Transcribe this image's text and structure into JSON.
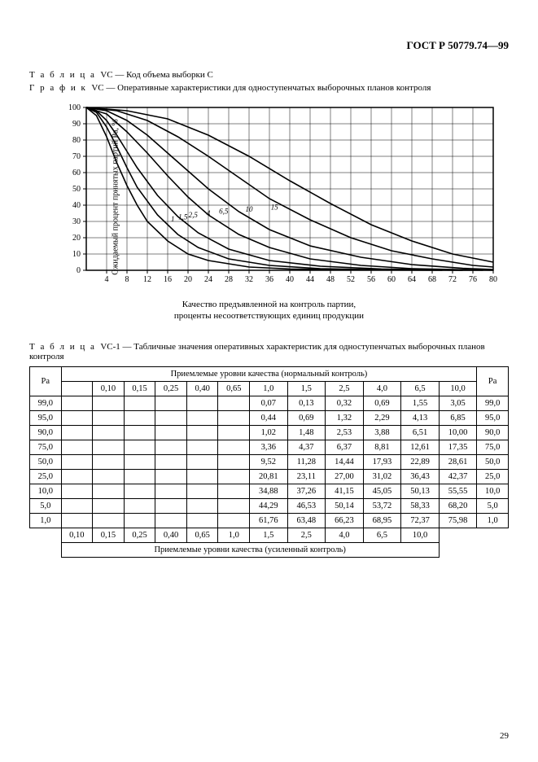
{
  "document_id": "ГОСТ Р 50779.74—99",
  "page_number": "29",
  "table_vc_caption_prefix": "Т а б л и ц а",
  "table_vc_caption_code": "VC —",
  "table_vc_caption_text": "Код объема выборки C",
  "graphic_vc_caption_prefix": "Г р а ф и к",
  "graphic_vc_caption_code": "VC —",
  "graphic_vc_caption_text": "Оперативные характеристики для одноступенчатых выборочных планов контроля",
  "chart_sub_line1": "Качество предъявленной на контроль партии,",
  "chart_sub_line2": "проценты несоответствующих единиц продукции",
  "chart": {
    "type": "line",
    "background_color": "#ffffff",
    "axis_color": "#000000",
    "grid_color": "#000000",
    "ylabel": "Ожидаемый процент принятых партий Pa, %",
    "ylim": [
      0,
      100
    ],
    "ytick_step": 10,
    "xlim": [
      0,
      80
    ],
    "xticks": [
      4,
      8,
      12,
      16,
      20,
      24,
      28,
      32,
      36,
      40,
      44,
      48,
      52,
      56,
      60,
      64,
      68,
      72,
      76,
      80
    ],
    "curve_labels": [
      "1",
      "1,5",
      "2,5",
      "4",
      "6,5",
      "10",
      "15"
    ],
    "curve_label_positions_x": [
      17,
      19,
      21,
      24,
      27,
      32,
      37
    ],
    "series": [
      {
        "label": "1",
        "color": "#000000",
        "points": [
          [
            0,
            100
          ],
          [
            2,
            95
          ],
          [
            4,
            82
          ],
          [
            6,
            66
          ],
          [
            8,
            52
          ],
          [
            10,
            40
          ],
          [
            12,
            30
          ],
          [
            16,
            18
          ],
          [
            20,
            10
          ],
          [
            24,
            6
          ],
          [
            32,
            2
          ],
          [
            40,
            0.8
          ],
          [
            52,
            0.2
          ],
          [
            70,
            0
          ]
        ]
      },
      {
        "label": "1,5",
        "color": "#000000",
        "points": [
          [
            0,
            100
          ],
          [
            2,
            97
          ],
          [
            4,
            88
          ],
          [
            6,
            76
          ],
          [
            8,
            63
          ],
          [
            10,
            51
          ],
          [
            14,
            34
          ],
          [
            18,
            22
          ],
          [
            22,
            14
          ],
          [
            28,
            7
          ],
          [
            36,
            3
          ],
          [
            46,
            1
          ],
          [
            60,
            0.2
          ],
          [
            74,
            0
          ]
        ]
      },
      {
        "label": "2,5",
        "color": "#000000",
        "points": [
          [
            0,
            100
          ],
          [
            2,
            98
          ],
          [
            4,
            92
          ],
          [
            6,
            83
          ],
          [
            8,
            73
          ],
          [
            10,
            63
          ],
          [
            14,
            46
          ],
          [
            18,
            33
          ],
          [
            22,
            23
          ],
          [
            28,
            13
          ],
          [
            36,
            6
          ],
          [
            46,
            2.5
          ],
          [
            58,
            0.8
          ],
          [
            72,
            0.1
          ],
          [
            78,
            0
          ]
        ]
      },
      {
        "label": "4",
        "color": "#000000",
        "points": [
          [
            0,
            100
          ],
          [
            4,
            96
          ],
          [
            8,
            85
          ],
          [
            12,
            72
          ],
          [
            16,
            58
          ],
          [
            20,
            45
          ],
          [
            24,
            34
          ],
          [
            30,
            22
          ],
          [
            36,
            14
          ],
          [
            44,
            7
          ],
          [
            54,
            3
          ],
          [
            64,
            1
          ],
          [
            76,
            0.2
          ],
          [
            80,
            0
          ]
        ]
      },
      {
        "label": "6,5",
        "color": "#000000",
        "points": [
          [
            0,
            100
          ],
          [
            4,
            98
          ],
          [
            8,
            92
          ],
          [
            12,
            83
          ],
          [
            16,
            72
          ],
          [
            20,
            61
          ],
          [
            24,
            50
          ],
          [
            30,
            36
          ],
          [
            36,
            25
          ],
          [
            44,
            15
          ],
          [
            54,
            8
          ],
          [
            64,
            3.5
          ],
          [
            74,
            1.2
          ],
          [
            80,
            0.5
          ]
        ]
      },
      {
        "label": "10",
        "color": "#000000",
        "points": [
          [
            0,
            100
          ],
          [
            6,
            98
          ],
          [
            12,
            92
          ],
          [
            18,
            82
          ],
          [
            24,
            70
          ],
          [
            30,
            57
          ],
          [
            36,
            44
          ],
          [
            44,
            31
          ],
          [
            52,
            20
          ],
          [
            60,
            12
          ],
          [
            68,
            7
          ],
          [
            76,
            3
          ],
          [
            80,
            2
          ]
        ]
      },
      {
        "label": "15",
        "color": "#000000",
        "points": [
          [
            0,
            100
          ],
          [
            8,
            98
          ],
          [
            16,
            93
          ],
          [
            24,
            83
          ],
          [
            32,
            70
          ],
          [
            40,
            55
          ],
          [
            48,
            41
          ],
          [
            56,
            28
          ],
          [
            64,
            18
          ],
          [
            72,
            10
          ],
          [
            80,
            5
          ]
        ]
      }
    ],
    "line_width": 1.6,
    "font_size_ticks": 10,
    "font_size_curve_labels": 9
  },
  "table_vc1_caption_prefix": "Т а б л и ц а",
  "table_vc1_caption_code": "VC-1 —",
  "table_vc1_caption_text": "Табличные значения оперативных характеристик для одноступенчатых выборочных планов контроля",
  "table": {
    "header_main": "Приемлемые уровни качества (нормальный контроль)",
    "footer_main": "Приемлемые уровни качества (усиленный контроль)",
    "pa_label": "Pa",
    "col_headers_top": [
      "0,10",
      "0,15",
      "0,25",
      "0,40",
      "0,65",
      "1,0",
      "1,5",
      "2,5",
      "4,0",
      "6,5",
      "10,0"
    ],
    "col_headers_bottom": [
      "0,10",
      "0,15",
      "0,25",
      "0,40",
      "0,65",
      "1,0",
      "1,5",
      "2,5",
      "4,0",
      "6,5",
      "10,0"
    ],
    "rows": [
      {
        "pa": "99,0",
        "cells": [
          "",
          "",
          "",
          "",
          "",
          "0,07",
          "0,13",
          "0,32",
          "0,69",
          "1,55",
          "3,05"
        ]
      },
      {
        "pa": "95,0",
        "cells": [
          "",
          "",
          "",
          "",
          "",
          "0,44",
          "0,69",
          "1,32",
          "2,29",
          "4,13",
          "6,85"
        ]
      },
      {
        "pa": "90,0",
        "cells": [
          "",
          "",
          "",
          "",
          "",
          "1,02",
          "1,48",
          "2,53",
          "3,88",
          "6,51",
          "10,00"
        ]
      },
      {
        "pa": "75,0",
        "cells": [
          "",
          "",
          "",
          "",
          "",
          "3,36",
          "4,37",
          "6,37",
          "8,81",
          "12,61",
          "17,35"
        ]
      },
      {
        "pa": "50,0",
        "cells": [
          "",
          "",
          "",
          "",
          "",
          "9,52",
          "11,28",
          "14,44",
          "17,93",
          "22,89",
          "28,61"
        ]
      },
      {
        "pa": "25,0",
        "cells": [
          "",
          "",
          "",
          "",
          "",
          "20,81",
          "23,11",
          "27,00",
          "31,02",
          "36,43",
          "42,37"
        ]
      },
      {
        "pa": "10,0",
        "cells": [
          "",
          "",
          "",
          "",
          "",
          "34,88",
          "37,26",
          "41,15",
          "45,05",
          "50,13",
          "55,55"
        ]
      },
      {
        "pa": "5,0",
        "cells": [
          "",
          "",
          "",
          "",
          "",
          "44,29",
          "46,53",
          "50,14",
          "53,72",
          "58,33",
          "68,20"
        ]
      },
      {
        "pa": "1,0",
        "cells": [
          "",
          "",
          "",
          "",
          "",
          "61,76",
          "63,48",
          "66,23",
          "68,95",
          "72,37",
          "75,98"
        ]
      }
    ],
    "border_color": "#000000",
    "font_size": 10.5
  }
}
